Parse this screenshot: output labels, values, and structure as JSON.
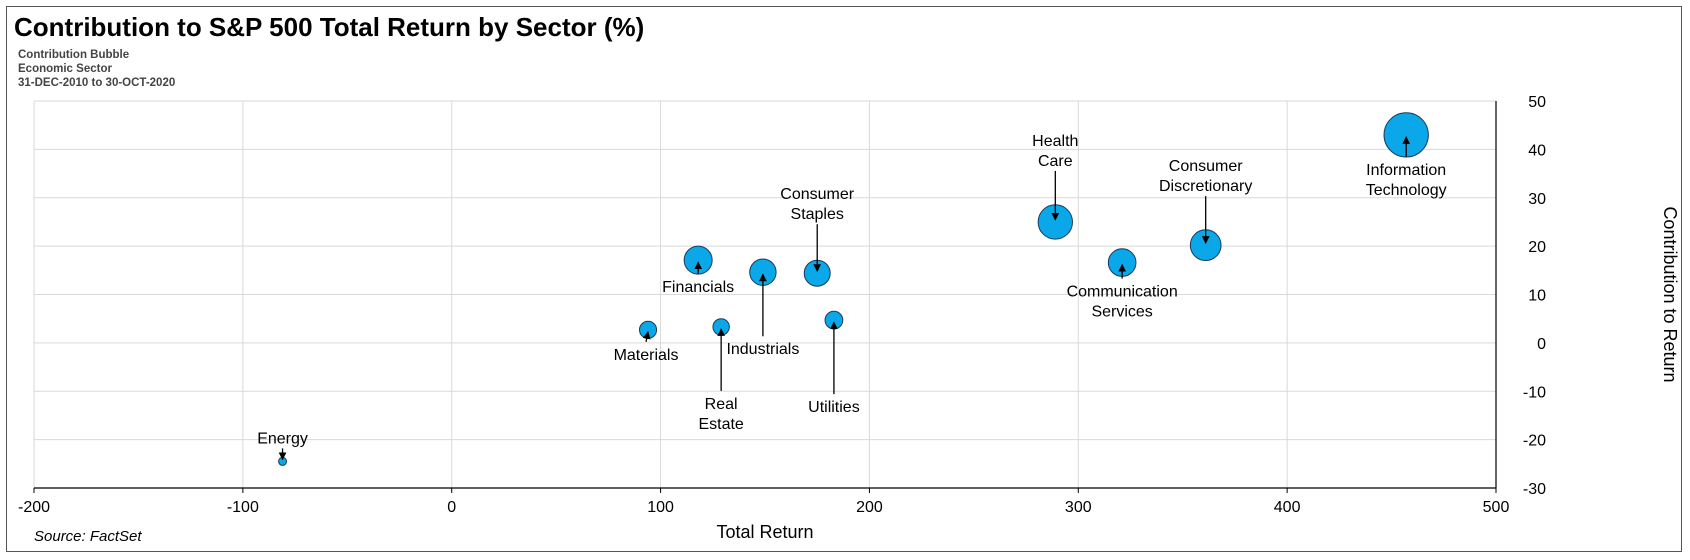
{
  "title": "Contribution to S&P 500 Total Return by Sector (%)",
  "subtitles": [
    "Contribution Bubble",
    "Economic Sector",
    "31-DEC-2010 to 30-OCT-2020"
  ],
  "source": "Source: FactSet",
  "colors": {
    "bubble_fill": "#0aa8e8",
    "bubble_stroke": "#1a3a5a",
    "grid": "#d9d9d9",
    "text": "#000000"
  },
  "chart_data": {
    "type": "scatter",
    "subtype": "bubble",
    "xlabel": "Total Return",
    "ylabel": "Contribution to Return",
    "xlim": [
      -200,
      500
    ],
    "ylim": [
      -30,
      50
    ],
    "x_ticks": [
      -200,
      -100,
      0,
      100,
      200,
      300,
      400,
      500
    ],
    "y_ticks": [
      -30,
      -20,
      -10,
      0,
      10,
      20,
      30,
      40,
      50
    ],
    "grid": true,
    "y_axis_side": "right",
    "points": [
      {
        "label": "Energy",
        "x": -81,
        "y": -24.5,
        "size": 0.5
      },
      {
        "label": "Materials",
        "x": 94,
        "y": 2.7,
        "size": 2.6
      },
      {
        "label": "Financials",
        "x": 118,
        "y": 17.1,
        "size": 7.0
      },
      {
        "label": "Real Estate",
        "x": 129,
        "y": 3.3,
        "size": 2.4
      },
      {
        "label": "Industrials",
        "x": 149,
        "y": 14.6,
        "size": 6.2
      },
      {
        "label": "Consumer Staples",
        "x": 175,
        "y": 14.4,
        "size": 6.0
      },
      {
        "label": "Utilities",
        "x": 183,
        "y": 4.7,
        "size": 2.8
      },
      {
        "label": "Health Care",
        "x": 289,
        "y": 25.0,
        "size": 10.5
      },
      {
        "label": "Communication Services",
        "x": 321,
        "y": 16.6,
        "size": 6.8
      },
      {
        "label": "Consumer Discretionary",
        "x": 361,
        "y": 20.2,
        "size": 8.4
      },
      {
        "label": "Information Technology",
        "x": 457,
        "y": 43.0,
        "size": 17.5
      }
    ]
  }
}
